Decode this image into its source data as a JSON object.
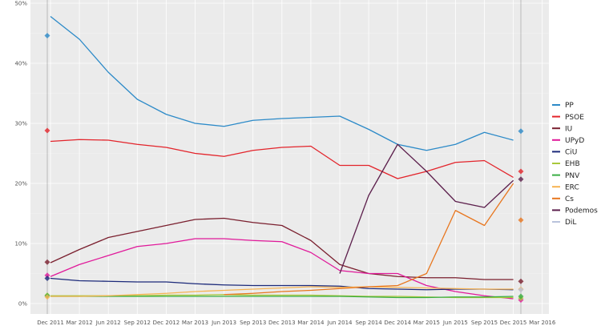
{
  "chart_data": {
    "type": "line",
    "ylim": [
      0,
      50
    ],
    "y_ticks": [
      "0%",
      "10%",
      "20%",
      "30%",
      "40%",
      "50%"
    ],
    "y_tick_values": [
      0,
      10,
      20,
      30,
      40,
      50
    ],
    "x_ticks": [
      "Dec 2011",
      "Mar 2012",
      "Jun 2012",
      "Sep 2012",
      "Dec 2012",
      "Mar 2013",
      "Jun 2013",
      "Sep 2013",
      "Dec 2013",
      "Mar 2014",
      "Jun 2014",
      "Sep 2014",
      "Dec 2014",
      "Mar 2015",
      "Jun 2015",
      "Sep 2015",
      "Dec 2015",
      "Mar 2016"
    ],
    "x": [
      "Dec 2011",
      "Mar 2012",
      "Jun 2012",
      "Sep 2012",
      "Dec 2012",
      "Mar 2013",
      "Jun 2013",
      "Sep 2013",
      "Dec 2013",
      "Mar 2014",
      "Jun 2014",
      "Sep 2014",
      "Dec 2014",
      "Mar 2015",
      "Jun 2015",
      "Sep 2015",
      "Dec 2015"
    ],
    "grid": true,
    "legend": "right",
    "series": [
      {
        "name": "PP",
        "color": "#2c8ac8",
        "values": [
          47.8,
          44,
          38.5,
          34,
          31.5,
          30,
          29.5,
          30.5,
          30.8,
          31,
          31.2,
          29,
          26.5,
          25.5,
          26.5,
          28.5,
          27.2
        ],
        "election": [
          44.6,
          28.7
        ]
      },
      {
        "name": "PSOE",
        "color": "#e3242b",
        "values": [
          27,
          27.3,
          27.2,
          26.5,
          26,
          25,
          24.5,
          25.5,
          26,
          26.2,
          23,
          23,
          20.8,
          22,
          23.5,
          23.8,
          21
        ],
        "election": [
          28.8,
          22.0
        ]
      },
      {
        "name": "IU",
        "color": "#7a1f2e",
        "values": [
          6.8,
          9,
          11,
          12,
          13,
          14,
          14.2,
          13.5,
          13,
          10.5,
          6.5,
          5,
          4.5,
          4.3,
          4.3,
          4,
          4
        ],
        "election": [
          6.9,
          3.7
        ]
      },
      {
        "name": "UPyD",
        "color": "#e0199a",
        "values": [
          4.5,
          6.5,
          8,
          9.5,
          10,
          10.8,
          10.8,
          10.5,
          10.3,
          8.5,
          5.5,
          5,
          5,
          3,
          2,
          1.3,
          0.8
        ],
        "election": [
          4.7,
          0.6
        ]
      },
      {
        "name": "CiU",
        "color": "#1c2a7a",
        "values": [
          4.2,
          3.8,
          3.7,
          3.6,
          3.6,
          3.3,
          3.1,
          3,
          3,
          3,
          2.9,
          2.5,
          2.4,
          2.3,
          2.4,
          2.4,
          2.3
        ],
        "election": [
          4.2,
          null
        ]
      },
      {
        "name": "EHB",
        "color": "#a8c83a",
        "values": [
          1.3,
          1.3,
          1.3,
          1.3,
          1.4,
          1.4,
          1.5,
          1.4,
          1.4,
          1.4,
          1.3,
          1.2,
          1.2,
          1.1,
          1,
          1,
          1
        ],
        "election": [
          1.4,
          0.9
        ]
      },
      {
        "name": "PNV",
        "color": "#3aae44",
        "values": [
          1.2,
          1.2,
          1.2,
          1.2,
          1.2,
          1.2,
          1.2,
          1.2,
          1.2,
          1.2,
          1.2,
          1.1,
          1,
          1,
          1.1,
          1.1,
          1.2
        ],
        "election": [
          1.3,
          1.2
        ]
      },
      {
        "name": "ERC",
        "color": "#f6b352",
        "values": [
          1.2,
          1.2,
          1.3,
          1.5,
          1.7,
          2,
          2.2,
          2.4,
          2.6,
          2.8,
          2.7,
          2.8,
          2.7,
          2.6,
          2.5,
          2.4,
          2.4
        ],
        "election": [
          1.1,
          2.4
        ]
      },
      {
        "name": "Cs",
        "color": "#e8761e",
        "values": [
          null,
          null,
          null,
          null,
          null,
          null,
          1.5,
          1.7,
          2,
          2.2,
          2.5,
          2.8,
          3,
          5,
          15.5,
          13,
          20
        ],
        "election": [
          null,
          13.9
        ]
      },
      {
        "name": "Podemos",
        "color": "#5c1f4c",
        "values": [
          null,
          null,
          null,
          null,
          null,
          null,
          null,
          null,
          null,
          null,
          5,
          18,
          26.5,
          22,
          17,
          16,
          20.5
        ],
        "election": [
          null,
          20.7
        ]
      },
      {
        "name": "DiL",
        "color": "#b9c3dc",
        "values": [
          null,
          null,
          null,
          null,
          null,
          null,
          null,
          null,
          null,
          null,
          null,
          null,
          null,
          null,
          null,
          null,
          2.3
        ],
        "election": [
          null,
          2.3
        ]
      }
    ]
  }
}
